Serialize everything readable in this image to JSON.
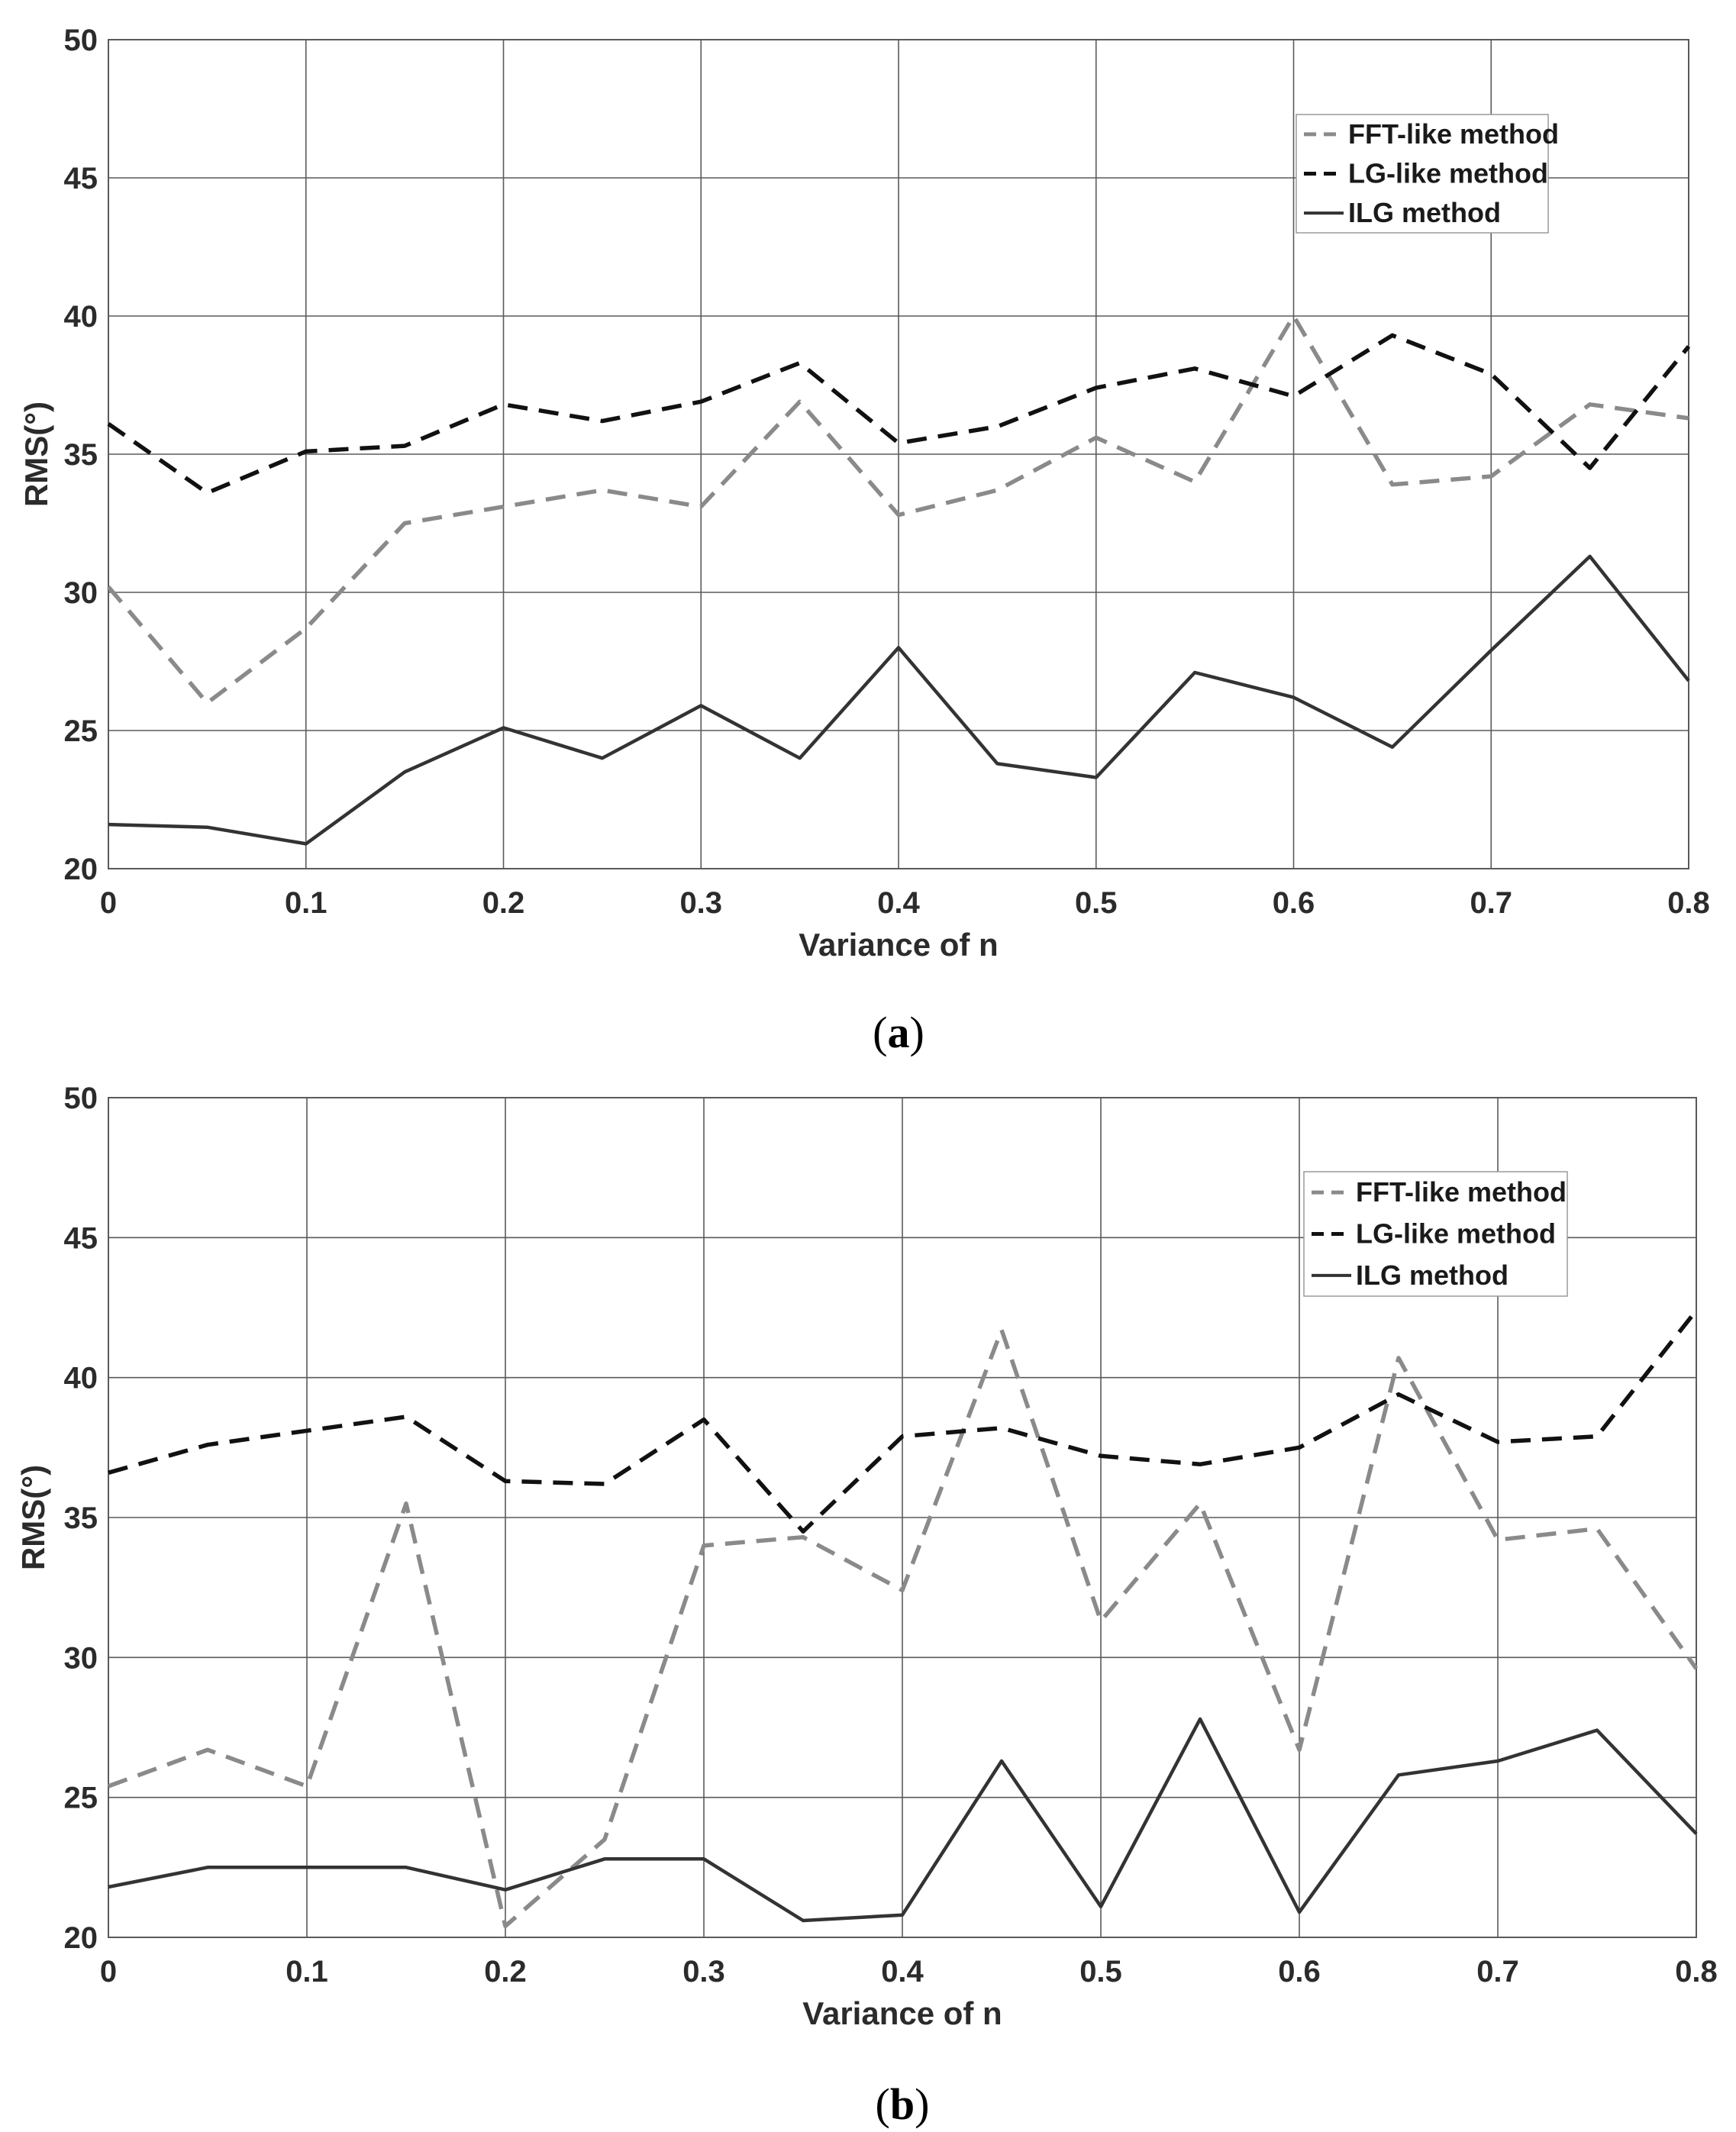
{
  "colors": {
    "fft": "#8a8a8a",
    "lg": "#111111",
    "ilg": "#333333",
    "grid": "#5a5a5a"
  },
  "chart_data": [
    {
      "type": "line",
      "caption_open": "(",
      "caption_letter": "a",
      "caption_close": ")",
      "xlabel": "Variance of n",
      "ylabel": "RMS(°)",
      "xlim": [
        0,
        0.8
      ],
      "ylim": [
        20,
        50
      ],
      "xticks": [
        "0",
        "0.1",
        "0.2",
        "0.3",
        "0.4",
        "0.5",
        "0.6",
        "0.7",
        "0.8"
      ],
      "yticks": [
        "20",
        "25",
        "30",
        "35",
        "40",
        "45",
        "50"
      ],
      "grid": true,
      "legend_position": "top-right",
      "x": [
        0,
        0.05,
        0.1,
        0.15,
        0.2,
        0.25,
        0.3,
        0.35,
        0.4,
        0.45,
        0.5,
        0.55,
        0.6,
        0.65,
        0.7,
        0.75,
        0.8
      ],
      "series": [
        {
          "name": "FFT-like method",
          "style": "dashed",
          "color_key": "fft",
          "values": [
            30.2,
            26.0,
            28.7,
            32.5,
            33.1,
            33.7,
            33.1,
            36.9,
            32.8,
            33.7,
            35.6,
            34.0,
            40.0,
            33.9,
            34.2,
            36.8,
            36.3
          ]
        },
        {
          "name": "LG-like method",
          "style": "dashed",
          "color_key": "lg",
          "values": [
            36.1,
            33.6,
            35.1,
            35.3,
            36.8,
            36.2,
            36.9,
            38.3,
            35.4,
            36.0,
            37.4,
            38.1,
            37.1,
            39.3,
            37.9,
            34.5,
            38.9
          ]
        },
        {
          "name": "ILG method",
          "style": "solid",
          "color_key": "ilg",
          "values": [
            21.6,
            21.5,
            20.9,
            23.5,
            25.1,
            24.0,
            25.9,
            24.0,
            28.0,
            23.8,
            23.3,
            27.1,
            26.2,
            24.4,
            27.9,
            31.3,
            26.8
          ]
        }
      ]
    },
    {
      "type": "line",
      "caption_open": "(",
      "caption_letter": "b",
      "caption_close": ")",
      "xlabel": "Variance of n",
      "ylabel": "RMS(°)",
      "xlim": [
        0,
        0.8
      ],
      "ylim": [
        20,
        50
      ],
      "xticks": [
        "0",
        "0.1",
        "0.2",
        "0.3",
        "0.4",
        "0.5",
        "0.6",
        "0.7",
        "0.8"
      ],
      "yticks": [
        "20",
        "25",
        "30",
        "35",
        "40",
        "45",
        "50"
      ],
      "grid": true,
      "legend_position": "top-right",
      "x": [
        0,
        0.05,
        0.1,
        0.15,
        0.2,
        0.25,
        0.3,
        0.35,
        0.4,
        0.45,
        0.5,
        0.55,
        0.6,
        0.65,
        0.7,
        0.75,
        0.8
      ],
      "series": [
        {
          "name": "FFT-like method",
          "style": "dashed",
          "color_key": "fft",
          "values": [
            25.4,
            26.7,
            25.4,
            35.5,
            20.4,
            23.5,
            34.0,
            34.3,
            32.4,
            41.7,
            31.3,
            35.5,
            26.7,
            40.7,
            34.2,
            34.6,
            29.6
          ]
        },
        {
          "name": "LG-like method",
          "style": "dashed",
          "color_key": "lg",
          "values": [
            36.6,
            37.6,
            38.1,
            38.6,
            36.3,
            36.2,
            38.5,
            34.5,
            37.9,
            38.2,
            37.2,
            36.9,
            37.5,
            39.4,
            37.7,
            37.9,
            42.4
          ]
        },
        {
          "name": "ILG method",
          "style": "solid",
          "color_key": "ilg",
          "values": [
            21.8,
            22.5,
            22.5,
            22.5,
            21.7,
            22.8,
            22.8,
            20.6,
            20.8,
            26.3,
            21.1,
            27.8,
            20.9,
            25.8,
            26.3,
            27.4,
            23.7
          ]
        }
      ]
    }
  ]
}
